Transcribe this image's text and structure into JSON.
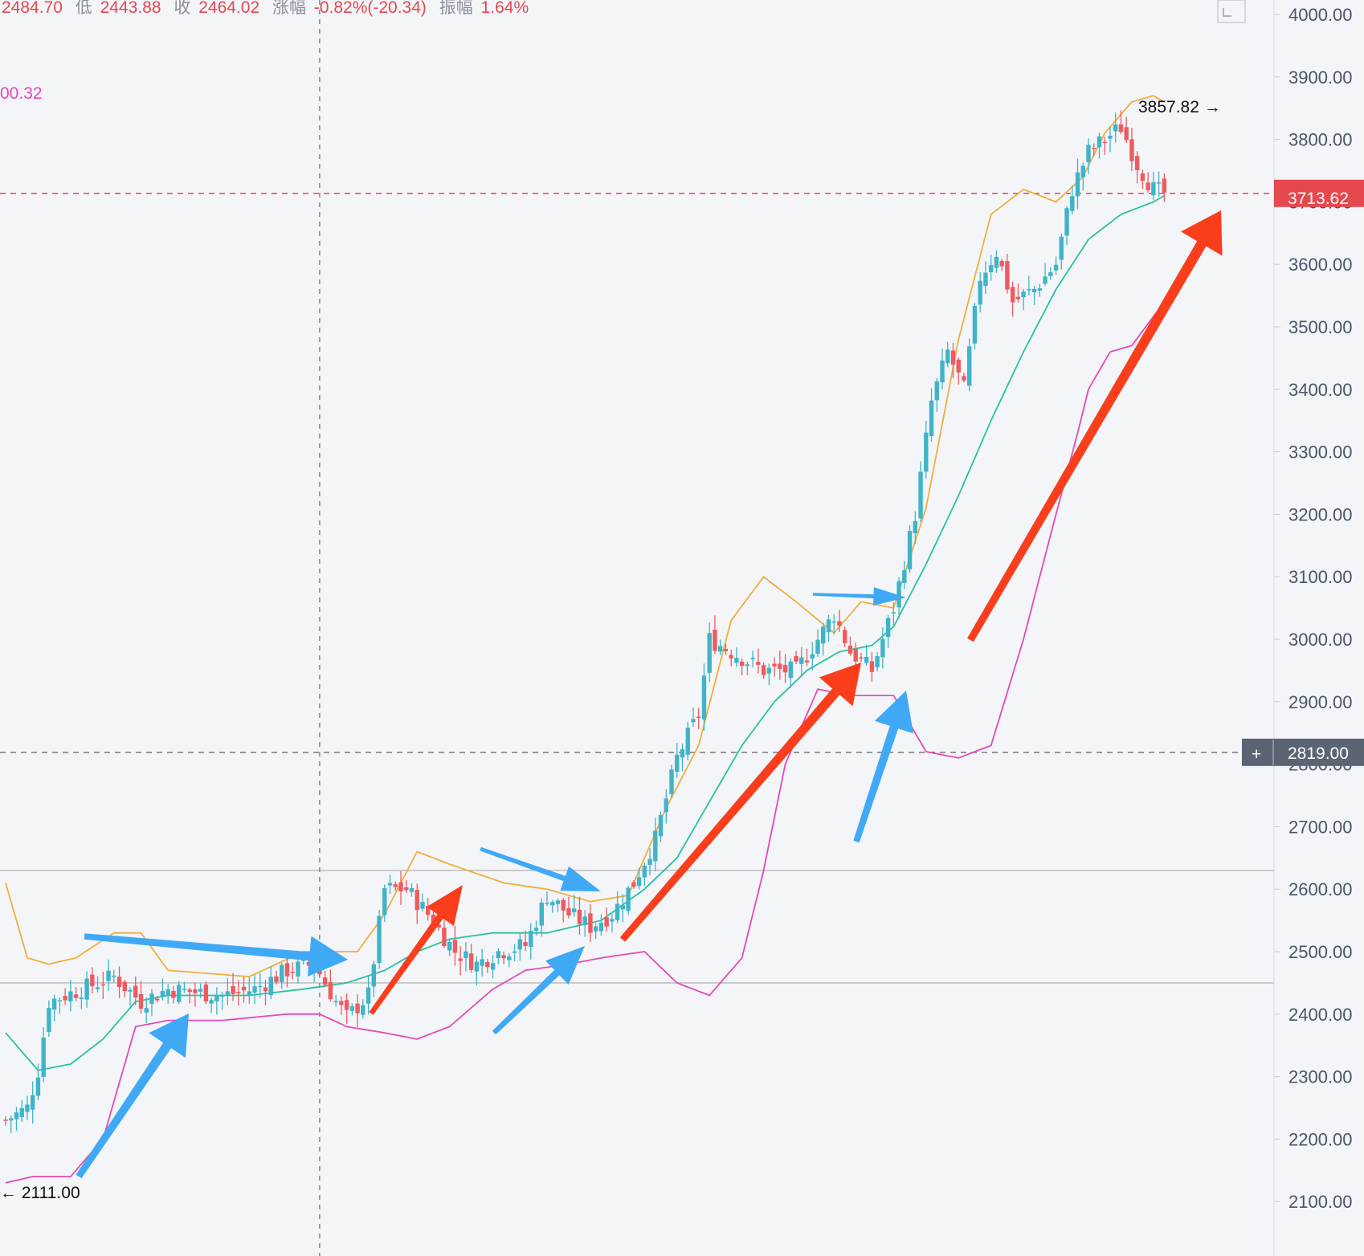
{
  "header": {
    "open_value": "2484.70",
    "low_label": "低",
    "low_value": "2443.88",
    "close_label": "收",
    "close_value": "2464.02",
    "change_label": "涨幅",
    "change_value": "-0.82%(-20.34)",
    "amplitude_label": "振幅",
    "amplitude_value": "1.64%",
    "indicator_value": "00.32"
  },
  "price_tags": {
    "current": {
      "value": "3713.62",
      "color": "#e5484d"
    },
    "crosshair": {
      "value": "2819.00",
      "color": "#5b6472"
    }
  },
  "annotations": {
    "high": "3857.82 →",
    "low": "← 2111.00"
  },
  "colors": {
    "up": "#3fb4c8",
    "down": "#ef5a5f",
    "upper_band": "#f2ae3a",
    "middle_band": "#27c2a0",
    "lower_band": "#e649b4",
    "blue_arrow": "#3fa9f5",
    "red_arrow": "#fa3e1c"
  },
  "chart_data": {
    "type": "candlestick",
    "y_axis": {
      "ticks": [
        "4000.00",
        "3900.00",
        "3800.00",
        "3700.00",
        "3600.00",
        "3500.00",
        "3400.00",
        "3300.00",
        "3200.00",
        "3100.00",
        "3000.00",
        "2900.00",
        "2800.00",
        "2700.00",
        "2600.00",
        "2500.00",
        "2400.00",
        "2300.00",
        "2200.00",
        "2100.00"
      ],
      "range": [
        2000,
        4020
      ]
    },
    "horizontal_lines": [
      {
        "value": 3713.62,
        "style": "dashed",
        "color": "#e5484d"
      },
      {
        "value": 2819.0,
        "style": "dashed",
        "color": "#777777"
      },
      {
        "value": 2630,
        "style": "solid",
        "color": "#b8b8b8"
      },
      {
        "value": 2450,
        "style": "solid",
        "color": "#b8b8b8"
      }
    ],
    "crosshair_x_index": 58,
    "key_prices": {
      "high": 3857.82,
      "low": 2111.0,
      "last": 3713.62
    },
    "close_anchors": [
      [
        0,
        2230
      ],
      [
        4,
        2250
      ],
      [
        6,
        2310
      ],
      [
        8,
        2420
      ],
      [
        14,
        2440
      ],
      [
        20,
        2460
      ],
      [
        25,
        2420
      ],
      [
        30,
        2440
      ],
      [
        40,
        2430
      ],
      [
        46,
        2440
      ],
      [
        52,
        2470
      ],
      [
        57,
        2480
      ],
      [
        61,
        2420
      ],
      [
        63,
        2395
      ],
      [
        67,
        2430
      ],
      [
        70,
        2600
      ],
      [
        74,
        2600
      ],
      [
        78,
        2560
      ],
      [
        83,
        2500
      ],
      [
        87,
        2480
      ],
      [
        91,
        2500
      ],
      [
        96,
        2510
      ],
      [
        100,
        2590
      ],
      [
        104,
        2560
      ],
      [
        108,
        2540
      ],
      [
        112,
        2560
      ],
      [
        116,
        2610
      ],
      [
        120,
        2680
      ],
      [
        124,
        2810
      ],
      [
        128,
        2880
      ],
      [
        130,
        3000
      ],
      [
        134,
        2980
      ],
      [
        140,
        2950
      ],
      [
        146,
        2950
      ],
      [
        150,
        3000
      ],
      [
        153,
        3040
      ],
      [
        156,
        2980
      ],
      [
        160,
        2950
      ],
      [
        164,
        3050
      ],
      [
        168,
        3200
      ],
      [
        171,
        3380
      ],
      [
        174,
        3460
      ],
      [
        177,
        3400
      ],
      [
        180,
        3580
      ],
      [
        183,
        3620
      ],
      [
        186,
        3540
      ],
      [
        190,
        3560
      ],
      [
        194,
        3600
      ],
      [
        197,
        3720
      ],
      [
        200,
        3780
      ],
      [
        203,
        3800
      ],
      [
        206,
        3820
      ],
      [
        209,
        3760
      ],
      [
        212,
        3720
      ],
      [
        214,
        3713.62
      ]
    ],
    "series": [
      {
        "key": "upper_band",
        "values": [
          [
            0,
            2610
          ],
          [
            4,
            2490
          ],
          [
            8,
            2480
          ],
          [
            13,
            2490
          ],
          [
            20,
            2530
          ],
          [
            25,
            2530
          ],
          [
            30,
            2470
          ],
          [
            45,
            2460
          ],
          [
            55,
            2500
          ],
          [
            65,
            2500
          ],
          [
            70,
            2560
          ],
          [
            76,
            2660
          ],
          [
            82,
            2640
          ],
          [
            92,
            2610
          ],
          [
            100,
            2600
          ],
          [
            108,
            2580
          ],
          [
            115,
            2590
          ],
          [
            122,
            2730
          ],
          [
            128,
            2830
          ],
          [
            134,
            3030
          ],
          [
            140,
            3100
          ],
          [
            146,
            3060
          ],
          [
            153,
            3010
          ],
          [
            158,
            3060
          ],
          [
            164,
            3050
          ],
          [
            170,
            3210
          ],
          [
            176,
            3480
          ],
          [
            182,
            3680
          ],
          [
            188,
            3720
          ],
          [
            194,
            3700
          ],
          [
            199,
            3740
          ],
          [
            203,
            3810
          ],
          [
            208,
            3860
          ],
          [
            212,
            3870
          ],
          [
            214,
            3860
          ]
        ]
      },
      {
        "key": "middle_band",
        "values": [
          [
            0,
            2370
          ],
          [
            6,
            2310
          ],
          [
            12,
            2320
          ],
          [
            18,
            2360
          ],
          [
            24,
            2420
          ],
          [
            30,
            2430
          ],
          [
            45,
            2430
          ],
          [
            55,
            2440
          ],
          [
            63,
            2450
          ],
          [
            70,
            2470
          ],
          [
            76,
            2500
          ],
          [
            82,
            2520
          ],
          [
            90,
            2530
          ],
          [
            100,
            2530
          ],
          [
            110,
            2550
          ],
          [
            118,
            2600
          ],
          [
            124,
            2650
          ],
          [
            130,
            2740
          ],
          [
            136,
            2830
          ],
          [
            142,
            2900
          ],
          [
            148,
            2950
          ],
          [
            154,
            2980
          ],
          [
            160,
            2990
          ],
          [
            164,
            3020
          ],
          [
            170,
            3120
          ],
          [
            176,
            3230
          ],
          [
            182,
            3350
          ],
          [
            188,
            3460
          ],
          [
            194,
            3560
          ],
          [
            200,
            3640
          ],
          [
            206,
            3680
          ],
          [
            212,
            3700
          ],
          [
            214,
            3710
          ]
        ]
      },
      {
        "key": "lower_band",
        "values": [
          [
            0,
            2130
          ],
          [
            5,
            2140
          ],
          [
            12,
            2140
          ],
          [
            18,
            2200
          ],
          [
            24,
            2380
          ],
          [
            30,
            2390
          ],
          [
            40,
            2390
          ],
          [
            52,
            2400
          ],
          [
            58,
            2400
          ],
          [
            63,
            2380
          ],
          [
            70,
            2370
          ],
          [
            76,
            2360
          ],
          [
            82,
            2380
          ],
          [
            90,
            2440
          ],
          [
            96,
            2470
          ],
          [
            104,
            2480
          ],
          [
            110,
            2490
          ],
          [
            118,
            2500
          ],
          [
            124,
            2450
          ],
          [
            130,
            2430
          ],
          [
            136,
            2490
          ],
          [
            140,
            2630
          ],
          [
            144,
            2800
          ],
          [
            150,
            2920
          ],
          [
            156,
            2910
          ],
          [
            164,
            2910
          ],
          [
            170,
            2820
          ],
          [
            176,
            2810
          ],
          [
            182,
            2830
          ],
          [
            188,
            3000
          ],
          [
            194,
            3200
          ],
          [
            198,
            3330
          ],
          [
            200,
            3400
          ],
          [
            204,
            3460
          ],
          [
            208,
            3470
          ],
          [
            214,
            3540
          ]
        ]
      }
    ]
  }
}
